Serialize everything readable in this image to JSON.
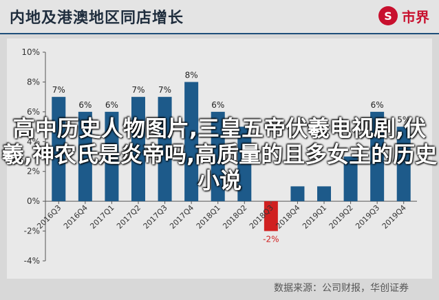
{
  "header": {
    "title": "内地及港澳地区同店增长",
    "logo_mark": "S",
    "logo_text": "市界"
  },
  "overlay_text": "高中历史人物图片,三皇五帝伏羲电视剧,伏羲,神农氏是炎帝吗,高质量的且多女主的历史小说",
  "source_text": "数据来源：公司财报，华创证券",
  "colors": {
    "bar": "#1d5a8a",
    "bar_negative": "#d02020",
    "negative_label": "#d02020",
    "background": "#d8d8d8",
    "plot": "#e9e9e9"
  },
  "chart_data": {
    "type": "bar",
    "title": "内地及港澳地区同店增长",
    "categories": [
      "2016Q3",
      "2016Q4",
      "2017Q1",
      "2017Q2",
      "2017Q3",
      "2017Q4",
      "2018Q1",
      "2018Q2",
      "2018Q3",
      "2018Q4",
      "2019Q1",
      "2019Q2",
      "2019Q3",
      "2019Q4"
    ],
    "values": [
      7,
      6,
      6,
      7,
      7,
      8,
      6,
      5,
      -2,
      1,
      1,
      3,
      6,
      5
    ],
    "value_labels": [
      "7%",
      "6%",
      "6%",
      "7%",
      "7%",
      "8%",
      "6%",
      "",
      "-2%",
      "",
      "",
      "",
      "6%",
      "5%"
    ],
    "yticks": [
      "-4%",
      "-2%",
      "0%",
      "2%",
      "4%",
      "6%",
      "8%",
      "10%"
    ],
    "ylim": [
      -4,
      10
    ],
    "grid": false,
    "legend": "none"
  }
}
